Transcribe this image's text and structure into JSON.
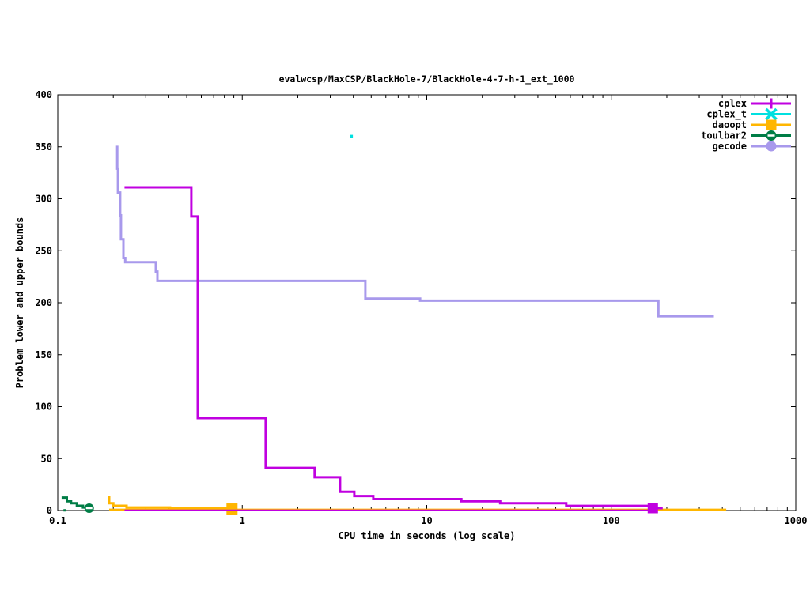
{
  "title": "evalwcsp/MaxCSP/BlackHole-7/BlackHole-4-7-h-1_ext_1000",
  "x_axis": {
    "label": "CPU time in seconds (log scale)",
    "scale": "log",
    "range": [
      0.1,
      1000
    ],
    "ticks": [
      0.1,
      1,
      10,
      100,
      1000
    ],
    "tick_labels": [
      "0.1",
      "1",
      "10",
      "100",
      "1000"
    ]
  },
  "y_axis": {
    "label": "Problem lower and upper bounds",
    "scale": "linear",
    "range": [
      0,
      400
    ],
    "ticks": [
      0,
      50,
      100,
      150,
      200,
      250,
      300,
      350,
      400
    ]
  },
  "legend": {
    "position": "top-right",
    "entries": [
      "cplex",
      "cplex_t",
      "daoopt",
      "toulbar2",
      "gecode"
    ]
  },
  "chart_data": {
    "type": "line",
    "title": "evalwcsp/MaxCSP/BlackHole-7/BlackHole-4-7-h-1_ext_1000",
    "xlabel": "CPU time in seconds (log scale)",
    "ylabel": "Problem lower and upper bounds",
    "xlim": [
      0.1,
      1000
    ],
    "ylim": [
      0,
      400
    ],
    "grid": false,
    "draw_order": [
      "daoopt",
      "toulbar2",
      "gecode",
      "cplex",
      "cplex_t"
    ],
    "series": [
      {
        "name": "cplex",
        "color": "#c000e0",
        "marker": "plus",
        "lines": [
          {
            "width": 1.8,
            "points": [
              [
                0.23,
                0.2
              ],
              [
                166,
                0.2
              ]
            ]
          },
          {
            "width": 3,
            "points": [
              [
                0.23,
                311
              ],
              [
                0.53,
                311
              ],
              [
                0.53,
                283
              ],
              [
                0.574,
                283
              ],
              [
                0.574,
                89
              ],
              [
                1.34,
                89
              ],
              [
                1.34,
                41
              ],
              [
                2.47,
                41
              ],
              [
                2.47,
                32
              ],
              [
                3.39,
                32
              ],
              [
                3.39,
                18
              ],
              [
                4.05,
                18
              ],
              [
                4.05,
                14
              ],
              [
                5.13,
                14
              ],
              [
                5.13,
                11
              ],
              [
                15.4,
                11
              ],
              [
                15.4,
                9
              ],
              [
                25,
                9
              ],
              [
                25,
                7
              ],
              [
                57,
                7
              ],
              [
                57,
                4.5
              ],
              [
                166,
                4.5
              ]
            ]
          },
          {
            "width": 3,
            "points": [
              [
                166,
                2.3
              ],
              [
                190,
                2.3
              ]
            ]
          }
        ],
        "end_markers": [
          {
            "x": 168,
            "y": 2.3,
            "type": "square",
            "size": 13
          }
        ]
      },
      {
        "name": "cplex_t",
        "color": "#00e0e0",
        "marker": "cross",
        "lines": [],
        "end_markers": [
          {
            "x": 3.9,
            "y": 360,
            "type": "dot",
            "size": 4
          }
        ]
      },
      {
        "name": "daoopt",
        "color": "#ffb600",
        "marker": "square",
        "lines": [
          {
            "width": 2.5,
            "points": [
              [
                0.19,
                0.8
              ],
              [
                420,
                0.8
              ]
            ]
          },
          {
            "width": 3,
            "points": [
              [
                0.19,
                14
              ],
              [
                0.19,
                7
              ],
              [
                0.2,
                7
              ],
              [
                0.2,
                4.6
              ],
              [
                0.236,
                4.6
              ],
              [
                0.236,
                3
              ],
              [
                0.406,
                3
              ],
              [
                0.406,
                2
              ],
              [
                0.88,
                2
              ]
            ]
          }
        ],
        "end_markers": [
          {
            "x": 0.88,
            "y": 1.5,
            "type": "square",
            "size": 14
          }
        ]
      },
      {
        "name": "toulbar2",
        "color": "#007d46",
        "marker": "circle-bar",
        "lines": [
          {
            "width": 3,
            "points": [
              [
                0.105,
                12.5
              ],
              [
                0.112,
                12.5
              ],
              [
                0.112,
                9
              ],
              [
                0.118,
                9
              ],
              [
                0.118,
                7
              ],
              [
                0.127,
                7
              ],
              [
                0.127,
                4.6
              ],
              [
                0.137,
                4.6
              ],
              [
                0.137,
                3
              ],
              [
                0.148,
                3
              ],
              [
                0.148,
                2.3
              ]
            ]
          }
        ],
        "end_markers": [
          {
            "x": 0.109,
            "y": 0.2,
            "type": "dot",
            "size": 3
          },
          {
            "x": 0.148,
            "y": 2.3,
            "type": "circle-bar",
            "size": 12
          }
        ]
      },
      {
        "name": "gecode",
        "color": "#a899ec",
        "marker": "circle",
        "lines": [
          {
            "width": 3,
            "points": [
              [
                0.21,
                351
              ],
              [
                0.21,
                329
              ],
              [
                0.212,
                329
              ],
              [
                0.212,
                306
              ],
              [
                0.218,
                306
              ],
              [
                0.218,
                284
              ],
              [
                0.22,
                284
              ],
              [
                0.22,
                261
              ],
              [
                0.227,
                261
              ],
              [
                0.227,
                243
              ],
              [
                0.232,
                243
              ],
              [
                0.232,
                239
              ],
              [
                0.34,
                239
              ],
              [
                0.34,
                230
              ],
              [
                0.347,
                230
              ],
              [
                0.347,
                221
              ],
              [
                4.65,
                221
              ],
              [
                4.65,
                204
              ],
              [
                9.2,
                204
              ],
              [
                9.2,
                202
              ],
              [
                180,
                202
              ],
              [
                180,
                187
              ],
              [
                360,
                187
              ]
            ]
          }
        ],
        "end_markers": []
      }
    ]
  }
}
